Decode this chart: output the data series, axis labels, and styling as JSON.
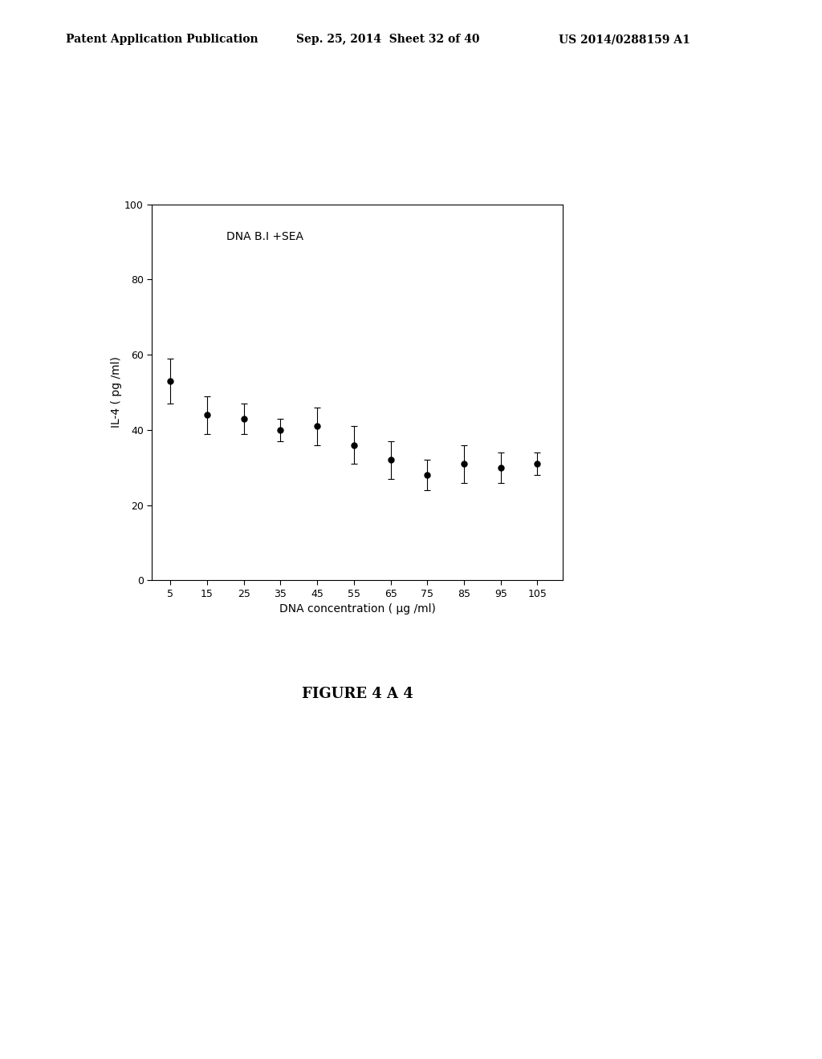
{
  "x_values": [
    5,
    15,
    25,
    35,
    45,
    55,
    65,
    75,
    85,
    95,
    105
  ],
  "y_values": [
    53,
    44,
    43,
    40,
    41,
    36,
    32,
    28,
    31,
    30,
    31
  ],
  "y_errors": [
    6,
    5,
    4,
    3,
    5,
    5,
    5,
    4,
    5,
    4,
    3
  ],
  "x_label": "DNA concentration ( μg /ml)",
  "y_label": "IL-4 ( pg /ml)",
  "annotation": "DNA B.I +SEA",
  "x_ticks": [
    5,
    15,
    25,
    35,
    45,
    55,
    65,
    75,
    85,
    95,
    105
  ],
  "x_tick_labels": [
    "5",
    "15",
    "25",
    "35",
    "45",
    "55",
    "65",
    "75",
    "85",
    "95",
    "105"
  ],
  "y_ticks": [
    0,
    20,
    40,
    60,
    80,
    100
  ],
  "y_lim": [
    0,
    100
  ],
  "x_lim": [
    0,
    112
  ],
  "figure_caption": "FIGURE 4 A 4",
  "header_left": "Patent Application Publication",
  "header_center": "Sep. 25, 2014  Sheet 32 of 40",
  "header_right": "US 2014/0288159 A1",
  "line_color": "#000000",
  "marker": "o",
  "marker_size": 5,
  "line_width": 1.2,
  "bg_color": "#ffffff",
  "plot_bg_color": "#ffffff"
}
